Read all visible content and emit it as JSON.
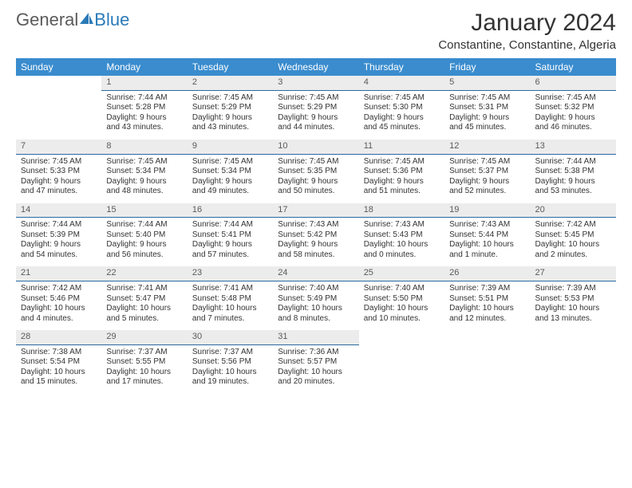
{
  "logo": {
    "part1": "General",
    "part2": "Blue"
  },
  "title": "January 2024",
  "location": "Constantine, Constantine, Algeria",
  "colors": {
    "header_bg": "#3a8cce",
    "header_text": "#ffffff",
    "daynum_bg": "#ececec",
    "daynum_text": "#5a5a5a",
    "rule": "#2a6aa0",
    "logo_gray": "#5a5a5a",
    "logo_blue": "#2a7ab8"
  },
  "weekdays": [
    "Sunday",
    "Monday",
    "Tuesday",
    "Wednesday",
    "Thursday",
    "Friday",
    "Saturday"
  ],
  "weeks": [
    [
      {
        "n": "",
        "lines": []
      },
      {
        "n": "1",
        "lines": [
          "Sunrise: 7:44 AM",
          "Sunset: 5:28 PM",
          "Daylight: 9 hours",
          "and 43 minutes."
        ]
      },
      {
        "n": "2",
        "lines": [
          "Sunrise: 7:45 AM",
          "Sunset: 5:29 PM",
          "Daylight: 9 hours",
          "and 43 minutes."
        ]
      },
      {
        "n": "3",
        "lines": [
          "Sunrise: 7:45 AM",
          "Sunset: 5:29 PM",
          "Daylight: 9 hours",
          "and 44 minutes."
        ]
      },
      {
        "n": "4",
        "lines": [
          "Sunrise: 7:45 AM",
          "Sunset: 5:30 PM",
          "Daylight: 9 hours",
          "and 45 minutes."
        ]
      },
      {
        "n": "5",
        "lines": [
          "Sunrise: 7:45 AM",
          "Sunset: 5:31 PM",
          "Daylight: 9 hours",
          "and 45 minutes."
        ]
      },
      {
        "n": "6",
        "lines": [
          "Sunrise: 7:45 AM",
          "Sunset: 5:32 PM",
          "Daylight: 9 hours",
          "and 46 minutes."
        ]
      }
    ],
    [
      {
        "n": "7",
        "lines": [
          "Sunrise: 7:45 AM",
          "Sunset: 5:33 PM",
          "Daylight: 9 hours",
          "and 47 minutes."
        ]
      },
      {
        "n": "8",
        "lines": [
          "Sunrise: 7:45 AM",
          "Sunset: 5:34 PM",
          "Daylight: 9 hours",
          "and 48 minutes."
        ]
      },
      {
        "n": "9",
        "lines": [
          "Sunrise: 7:45 AM",
          "Sunset: 5:34 PM",
          "Daylight: 9 hours",
          "and 49 minutes."
        ]
      },
      {
        "n": "10",
        "lines": [
          "Sunrise: 7:45 AM",
          "Sunset: 5:35 PM",
          "Daylight: 9 hours",
          "and 50 minutes."
        ]
      },
      {
        "n": "11",
        "lines": [
          "Sunrise: 7:45 AM",
          "Sunset: 5:36 PM",
          "Daylight: 9 hours",
          "and 51 minutes."
        ]
      },
      {
        "n": "12",
        "lines": [
          "Sunrise: 7:45 AM",
          "Sunset: 5:37 PM",
          "Daylight: 9 hours",
          "and 52 minutes."
        ]
      },
      {
        "n": "13",
        "lines": [
          "Sunrise: 7:44 AM",
          "Sunset: 5:38 PM",
          "Daylight: 9 hours",
          "and 53 minutes."
        ]
      }
    ],
    [
      {
        "n": "14",
        "lines": [
          "Sunrise: 7:44 AM",
          "Sunset: 5:39 PM",
          "Daylight: 9 hours",
          "and 54 minutes."
        ]
      },
      {
        "n": "15",
        "lines": [
          "Sunrise: 7:44 AM",
          "Sunset: 5:40 PM",
          "Daylight: 9 hours",
          "and 56 minutes."
        ]
      },
      {
        "n": "16",
        "lines": [
          "Sunrise: 7:44 AM",
          "Sunset: 5:41 PM",
          "Daylight: 9 hours",
          "and 57 minutes."
        ]
      },
      {
        "n": "17",
        "lines": [
          "Sunrise: 7:43 AM",
          "Sunset: 5:42 PM",
          "Daylight: 9 hours",
          "and 58 minutes."
        ]
      },
      {
        "n": "18",
        "lines": [
          "Sunrise: 7:43 AM",
          "Sunset: 5:43 PM",
          "Daylight: 10 hours",
          "and 0 minutes."
        ]
      },
      {
        "n": "19",
        "lines": [
          "Sunrise: 7:43 AM",
          "Sunset: 5:44 PM",
          "Daylight: 10 hours",
          "and 1 minute."
        ]
      },
      {
        "n": "20",
        "lines": [
          "Sunrise: 7:42 AM",
          "Sunset: 5:45 PM",
          "Daylight: 10 hours",
          "and 2 minutes."
        ]
      }
    ],
    [
      {
        "n": "21",
        "lines": [
          "Sunrise: 7:42 AM",
          "Sunset: 5:46 PM",
          "Daylight: 10 hours",
          "and 4 minutes."
        ]
      },
      {
        "n": "22",
        "lines": [
          "Sunrise: 7:41 AM",
          "Sunset: 5:47 PM",
          "Daylight: 10 hours",
          "and 5 minutes."
        ]
      },
      {
        "n": "23",
        "lines": [
          "Sunrise: 7:41 AM",
          "Sunset: 5:48 PM",
          "Daylight: 10 hours",
          "and 7 minutes."
        ]
      },
      {
        "n": "24",
        "lines": [
          "Sunrise: 7:40 AM",
          "Sunset: 5:49 PM",
          "Daylight: 10 hours",
          "and 8 minutes."
        ]
      },
      {
        "n": "25",
        "lines": [
          "Sunrise: 7:40 AM",
          "Sunset: 5:50 PM",
          "Daylight: 10 hours",
          "and 10 minutes."
        ]
      },
      {
        "n": "26",
        "lines": [
          "Sunrise: 7:39 AM",
          "Sunset: 5:51 PM",
          "Daylight: 10 hours",
          "and 12 minutes."
        ]
      },
      {
        "n": "27",
        "lines": [
          "Sunrise: 7:39 AM",
          "Sunset: 5:53 PM",
          "Daylight: 10 hours",
          "and 13 minutes."
        ]
      }
    ],
    [
      {
        "n": "28",
        "lines": [
          "Sunrise: 7:38 AM",
          "Sunset: 5:54 PM",
          "Daylight: 10 hours",
          "and 15 minutes."
        ]
      },
      {
        "n": "29",
        "lines": [
          "Sunrise: 7:37 AM",
          "Sunset: 5:55 PM",
          "Daylight: 10 hours",
          "and 17 minutes."
        ]
      },
      {
        "n": "30",
        "lines": [
          "Sunrise: 7:37 AM",
          "Sunset: 5:56 PM",
          "Daylight: 10 hours",
          "and 19 minutes."
        ]
      },
      {
        "n": "31",
        "lines": [
          "Sunrise: 7:36 AM",
          "Sunset: 5:57 PM",
          "Daylight: 10 hours",
          "and 20 minutes."
        ]
      },
      {
        "n": "",
        "lines": []
      },
      {
        "n": "",
        "lines": []
      },
      {
        "n": "",
        "lines": []
      }
    ]
  ]
}
